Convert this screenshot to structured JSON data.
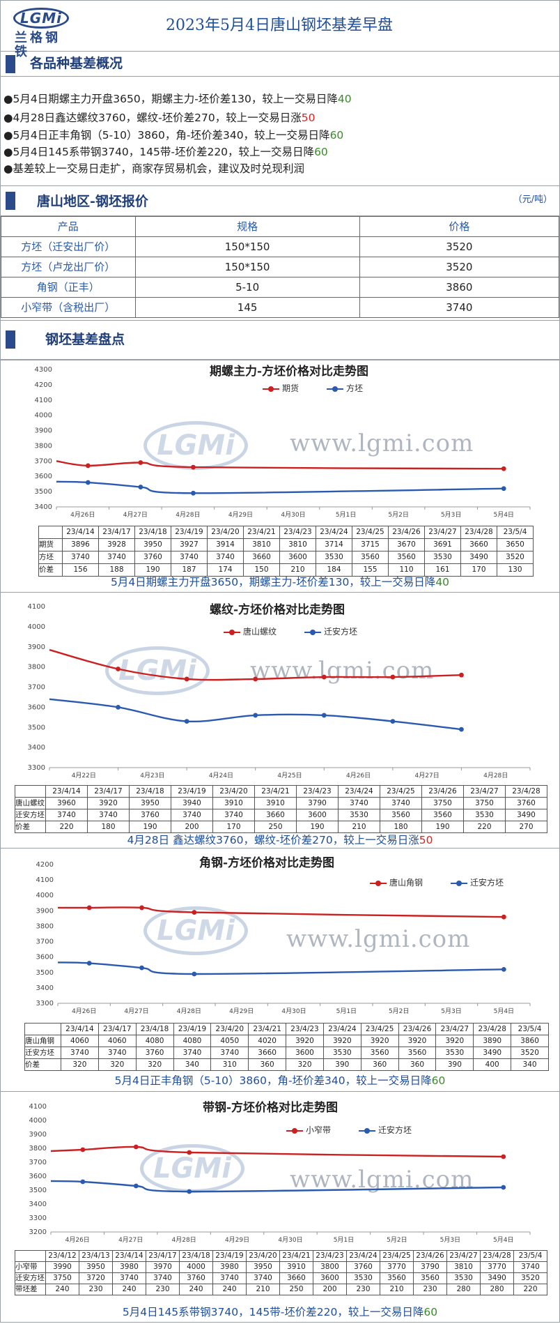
{
  "header": {
    "logo_text": "LGMi",
    "logo_cn": "兰格钢铁",
    "title": "2023年5月4日唐山钢坯基差早盘"
  },
  "section1": {
    "title": "各品种基差概况"
  },
  "bullets": [
    {
      "mark": "●",
      "text": "5月4日期螺主力开盘3650，期螺主力-坯价差130，较上一交易日降",
      "num": "40",
      "color": "#3a8a2a"
    },
    {
      "mark": "●",
      "text": "4月28日鑫达螺纹3760，螺纹-坯价差270，较上一交易日涨",
      "num": "50",
      "color": "#e02020"
    },
    {
      "mark": "●",
      "text": "5月4日正丰角钢（5-10）3860，角-坯价差340，较上一交易日降",
      "num": "60",
      "color": "#3a8a2a"
    },
    {
      "mark": "●",
      "text": "5月4日145系带钢3740，145带-坯价差220，较上一交易日降",
      "num": "60",
      "color": "#3a8a2a"
    },
    {
      "mark": "●",
      "text": "基差较上一交易日走扩，商家存贸易机会，建议及时兑现利润",
      "num": "",
      "color": "#222"
    }
  ],
  "section2": {
    "title": "唐山地区-钢坯报价",
    "unit": "（元/吨）"
  },
  "price_table": {
    "headers": [
      "产品",
      "规格",
      "价格"
    ],
    "rows": [
      [
        "方坯（迁安出厂价）",
        "150*150",
        "3520"
      ],
      [
        "方坯（卢龙出厂价）",
        "150*150",
        "3520"
      ],
      [
        "角钢（正丰）",
        "5-10",
        "3860"
      ],
      [
        "小窄带（含税出厂）",
        "145",
        "3740"
      ]
    ]
  },
  "section3": {
    "title": "钢坯基差盘点"
  },
  "watermark": {
    "logo": "LGMi",
    "url": "www.lgmi.com"
  },
  "chart_data": [
    {
      "type": "line",
      "title": "期螺主力-方坯价格对比走势图",
      "ylim": [
        3400,
        4300
      ],
      "yticks": [
        3400,
        3500,
        3600,
        3700,
        3800,
        3900,
        4000,
        4100,
        4200,
        4300
      ],
      "x_labels": [
        "4月26日",
        "4月27日",
        "4月28日",
        "4月29日",
        "4月30日",
        "5月1日",
        "5月2日",
        "5月3日",
        "5月4日"
      ],
      "series": [
        {
          "name": "期货",
          "color": "#cc1f1f",
          "points": [
            [
              -0.5,
              3700
            ],
            [
              0.1,
              3670
            ],
            [
              1.1,
              3690
            ],
            [
              2.1,
              3660
            ],
            [
              8.0,
              3650
            ]
          ]
        },
        {
          "name": "方坯",
          "color": "#2a5ab0",
          "points": [
            [
              -0.5,
              3565
            ],
            [
              0.1,
              3560
            ],
            [
              1.1,
              3530
            ],
            [
              2.1,
              3490
            ],
            [
              8.0,
              3520
            ]
          ]
        }
      ],
      "table": {
        "headers": [
          "",
          "23/4/14",
          "23/4/17",
          "23/4/18",
          "23/4/19",
          "23/4/20",
          "23/4/21",
          "23/4/23",
          "23/4/24",
          "23/4/25",
          "23/4/26",
          "23/4/27",
          "23/4/28",
          "23/5/4"
        ],
        "rows": [
          [
            "期货",
            "3896",
            "3928",
            "3950",
            "3927",
            "3914",
            "3810",
            "3810",
            "3714",
            "3715",
            "3670",
            "3691",
            "3660",
            "3650"
          ],
          [
            "方坯",
            "3740",
            "3740",
            "3760",
            "3740",
            "3740",
            "3660",
            "3600",
            "3530",
            "3560",
            "3560",
            "3530",
            "3490",
            "3520"
          ],
          [
            "价差",
            "156",
            "188",
            "190",
            "187",
            "174",
            "150",
            "210",
            "184",
            "155",
            "110",
            "161",
            "170",
            "130"
          ]
        ]
      },
      "caption": {
        "text": "5月4日期螺主力开盘3650，期螺主力-坯价差130，较上一交易日降",
        "num": "40",
        "color": "#3a8a2a"
      }
    },
    {
      "type": "line",
      "title": "螺纹-方坯价格对比走势图",
      "ylim": [
        3300,
        4100
      ],
      "yticks": [
        3300,
        3400,
        3500,
        3600,
        3700,
        3800,
        3900,
        4000,
        4100
      ],
      "x_labels": [
        "4月22日",
        "4月23日",
        "4月24日",
        "4月25日",
        "4月26日",
        "4月27日",
        "4月28日"
      ],
      "series": [
        {
          "name": "唐山螺纹",
          "color": "#cc1f1f",
          "points": [
            [
              -0.5,
              3885
            ],
            [
              0.5,
              3790
            ],
            [
              1.5,
              3740
            ],
            [
              2.5,
              3740
            ],
            [
              3.5,
              3750
            ],
            [
              4.5,
              3750
            ],
            [
              5.5,
              3760
            ]
          ]
        },
        {
          "name": "迁安方坯",
          "color": "#2a5ab0",
          "points": [
            [
              -0.5,
              3640
            ],
            [
              0.5,
              3600
            ],
            [
              1.5,
              3530
            ],
            [
              2.5,
              3560
            ],
            [
              3.5,
              3560
            ],
            [
              4.5,
              3530
            ],
            [
              5.5,
              3490
            ]
          ]
        }
      ],
      "table": {
        "headers": [
          "",
          "23/4/14",
          "23/4/17",
          "23/4/18",
          "23/4/19",
          "23/4/20",
          "23/4/21",
          "23/4/23",
          "23/4/24",
          "23/4/25",
          "23/4/26",
          "23/4/27",
          "23/4/28"
        ],
        "rows": [
          [
            "唐山螺纹",
            "3960",
            "3920",
            "3950",
            "3940",
            "3910",
            "3910",
            "3790",
            "3740",
            "3740",
            "3750",
            "3750",
            "3760"
          ],
          [
            "迁安方坯",
            "3740",
            "3740",
            "3760",
            "3740",
            "3740",
            "3660",
            "3600",
            "3530",
            "3560",
            "3560",
            "3530",
            "3490"
          ],
          [
            "价差",
            "220",
            "180",
            "190",
            "200",
            "170",
            "250",
            "190",
            "210",
            "180",
            "190",
            "220",
            "270"
          ]
        ]
      },
      "caption": {
        "text": "4月28日 鑫达螺纹3760，螺纹-坯价差270，较上一交易日涨",
        "num": "50",
        "color": "#e02020"
      }
    },
    {
      "type": "line",
      "title": "角钢-方坯价格对比走势图",
      "ylim": [
        3300,
        4200
      ],
      "yticks": [
        3300,
        3400,
        3500,
        3600,
        3700,
        3800,
        3900,
        4000,
        4100,
        4200
      ],
      "x_labels": [
        "4月26日",
        "4月27日",
        "4月28日",
        "4月29日",
        "4月30日",
        "5月1日",
        "5月2日",
        "5月3日",
        "5月4日"
      ],
      "series": [
        {
          "name": "唐山角钢",
          "color": "#cc1f1f",
          "points": [
            [
              -0.5,
              3920
            ],
            [
              0.1,
              3920
            ],
            [
              1.1,
              3920
            ],
            [
              2.1,
              3890
            ],
            [
              8.0,
              3860
            ]
          ]
        },
        {
          "name": "迁安方坯",
          "color": "#2a5ab0",
          "points": [
            [
              -0.5,
              3565
            ],
            [
              0.1,
              3560
            ],
            [
              1.1,
              3530
            ],
            [
              2.1,
              3490
            ],
            [
              8.0,
              3520
            ]
          ]
        }
      ],
      "table": {
        "headers": [
          "",
          "23/4/14",
          "23/4/17",
          "23/4/18",
          "23/4/19",
          "23/4/20",
          "23/4/21",
          "23/4/23",
          "23/4/24",
          "23/4/25",
          "23/4/26",
          "23/4/27",
          "23/4/28",
          "23/5/4"
        ],
        "rows": [
          [
            "唐山角钢",
            "4060",
            "4060",
            "4080",
            "4080",
            "4050",
            "4020",
            "3920",
            "3920",
            "3920",
            "3920",
            "3920",
            "3890",
            "3860"
          ],
          [
            "迁安方坯",
            "3740",
            "3740",
            "3760",
            "3740",
            "3740",
            "3660",
            "3600",
            "3530",
            "3560",
            "3560",
            "3530",
            "3490",
            "3520"
          ],
          [
            "价差",
            "320",
            "320",
            "320",
            "340",
            "310",
            "360",
            "320",
            "390",
            "360",
            "360",
            "390",
            "400",
            "340"
          ]
        ]
      },
      "caption": {
        "text": "5月4日正丰角钢（5-10）3860，角-坯价差340，较上一交易日降",
        "num": "60",
        "color": "#3a8a2a"
      }
    },
    {
      "type": "line",
      "title": "带钢-方坯价格对比走势图",
      "ylim": [
        3200,
        4100
      ],
      "yticks": [
        3200,
        3300,
        3400,
        3500,
        3600,
        3700,
        3800,
        3900,
        4000,
        4100
      ],
      "x_labels": [
        "4月26日",
        "4月27日",
        "4月28日",
        "4月29日",
        "4月30日",
        "5月1日",
        "5月2日",
        "5月3日",
        "5月4日"
      ],
      "series": [
        {
          "name": "小窄带",
          "color": "#cc1f1f",
          "points": [
            [
              -0.5,
              3780
            ],
            [
              0.1,
              3790
            ],
            [
              1.1,
              3810
            ],
            [
              2.1,
              3770
            ],
            [
              8.0,
              3740
            ]
          ]
        },
        {
          "name": "迁安方坯",
          "color": "#2a5ab0",
          "points": [
            [
              -0.5,
              3565
            ],
            [
              0.1,
              3560
            ],
            [
              1.1,
              3530
            ],
            [
              2.1,
              3490
            ],
            [
              8.0,
              3520
            ]
          ]
        }
      ],
      "table": {
        "headers": [
          "",
          "23/4/12",
          "23/4/13",
          "23/4/14",
          "23/4/17",
          "23/4/18",
          "23/4/19",
          "23/4/20",
          "23/4/21",
          "23/4/23",
          "23/4/24",
          "23/4/25",
          "23/4/26",
          "23/4/27",
          "23/4/28",
          "23/5/4"
        ],
        "rows": [
          [
            "小窄带",
            "3990",
            "3950",
            "3980",
            "3970",
            "4000",
            "3980",
            "3950",
            "3910",
            "3800",
            "3760",
            "3770",
            "3790",
            "3810",
            "3770",
            "3740"
          ],
          [
            "迁安方坯",
            "3750",
            "3720",
            "3740",
            "3740",
            "3760",
            "3740",
            "3740",
            "3660",
            "3600",
            "3530",
            "3560",
            "3560",
            "3530",
            "3490",
            "3520"
          ],
          [
            "带坯差",
            "240",
            "230",
            "240",
            "230",
            "240",
            "240",
            "210",
            "250",
            "200",
            "230",
            "210",
            "230",
            "280",
            "280",
            "220"
          ]
        ]
      },
      "caption": {
        "text": "5月4日145系带钢3740，145带-坯价差220，较上一交易日降",
        "num": "60",
        "color": "#3a8a2a"
      }
    }
  ]
}
